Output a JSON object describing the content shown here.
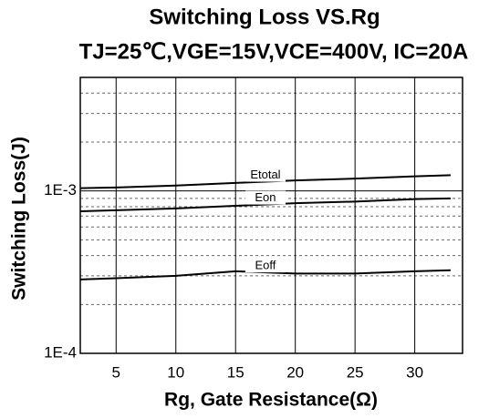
{
  "chart_data": {
    "type": "line",
    "title": "Switching Loss VS.Rg",
    "subtitle": "TJ=25℃,VGE=15V,VCE=400V, IC=20A",
    "xlabel": "Rg, Gate Resistance(Ω)",
    "ylabel": "Switching Loss(J)",
    "x": [
      2,
      5,
      10,
      15,
      20,
      25,
      30,
      33
    ],
    "series": [
      {
        "name": "Etotal",
        "color": "#000000",
        "values": [
          0.00104,
          0.00105,
          0.00108,
          0.00112,
          0.00116,
          0.00119,
          0.00123,
          0.00125
        ]
      },
      {
        "name": "Eon",
        "color": "#000000",
        "values": [
          0.00075,
          0.00076,
          0.00078,
          0.00081,
          0.00084,
          0.00086,
          0.00089,
          0.0009
        ]
      },
      {
        "name": "Eoff",
        "color": "#000000",
        "values": [
          0.000285,
          0.00029,
          0.0003,
          0.00032,
          0.00031,
          0.00031,
          0.00032,
          0.000325
        ]
      }
    ],
    "xlim": [
      2,
      34
    ],
    "xticks": [
      5,
      10,
      15,
      20,
      25,
      30
    ],
    "ylim": [
      0.0001,
      0.005
    ],
    "yticks": [
      {
        "value": 0.0001,
        "label": "1E-4"
      },
      {
        "value": 0.001,
        "label": "1E-3"
      }
    ],
    "log_y": true,
    "grid": true
  }
}
